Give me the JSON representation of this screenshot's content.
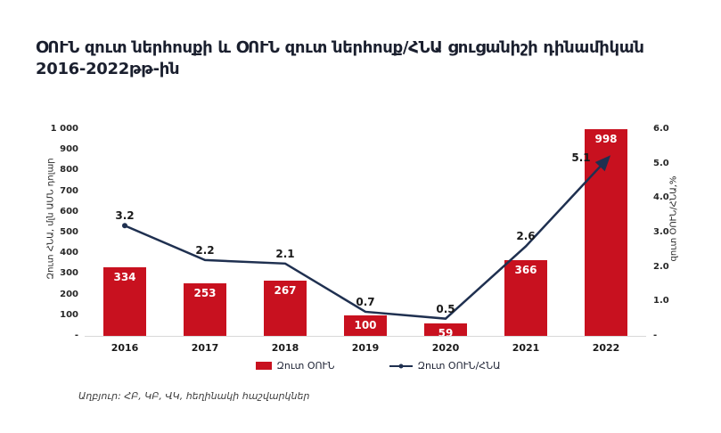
{
  "page": {
    "title_lines": [
      "ՕՈՒՆ զուտ ներհոսքի և ՕՈՒՆ զուտ ներհոսք/ՀՆԱ ցուցանիշի դինամիկան",
      "2016-2022թթ-ին"
    ]
  },
  "chart_data": {
    "type": "combo-bar-line",
    "title": "ՕՈՒՆ զուտ ներհոսքի և ՕՈՒՆ զուտ ներհոսք/ՀՆԱ ցուցանիշի դինամիկան 2016-2022թթ-ին",
    "categories": [
      "2016",
      "2017",
      "2018",
      "2019",
      "2020",
      "2021",
      "2022"
    ],
    "series": [
      {
        "name": "Զուտ ՕՈՒՆ",
        "type": "bar",
        "axis": "left",
        "color": "#c8111f",
        "values": [
          334,
          253,
          267,
          100,
          59,
          366,
          998
        ]
      },
      {
        "name": "Զուտ ՕՈՒՆ/ՀՆԱ",
        "type": "line",
        "axis": "right",
        "color": "#1f3050",
        "values": [
          3.2,
          2.2,
          2.1,
          0.7,
          0.5,
          2.6,
          5.1
        ]
      }
    ],
    "left_axis": {
      "label": "Զուտ ՀՆԱ, մլն ԱՄՆ դոլար",
      "min": 0,
      "max": 1000,
      "ticks": [
        "-",
        "100",
        "200",
        "300",
        "400",
        "500",
        "600",
        "700",
        "800",
        "900",
        "1 000"
      ]
    },
    "right_axis": {
      "label": "զուտ ՕՈՒՆ/ՀՆԱ,%",
      "min": 0,
      "max": 6,
      "ticks": [
        "-",
        "1.0",
        "2.0",
        "3.0",
        "4.0",
        "5.0",
        "6.0"
      ]
    },
    "legend_position": "bottom",
    "grid": false
  },
  "footer": {
    "source": "Աղբյուր: ՀԲ, ԿԲ, ՎԿ, հեղինակի հաշվարկներ"
  },
  "colors": {
    "bar": "#c8111f",
    "line": "#1f3050",
    "title": "#1a1f2e",
    "baseline": "#d9d9d9"
  }
}
